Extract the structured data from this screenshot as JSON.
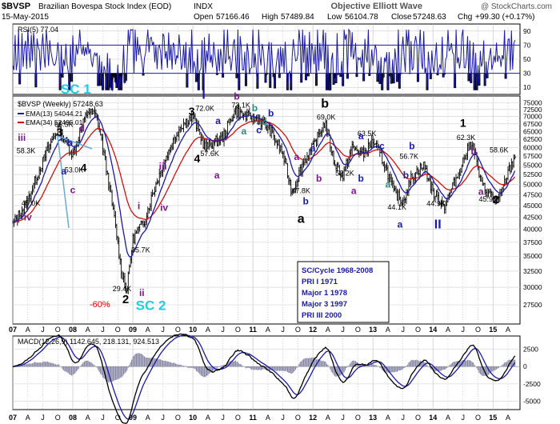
{
  "header": {
    "symbol": "$BVSP",
    "name": "Brazilian Bovespa Stock Index (EOD)",
    "exchange": "INDX",
    "date": "15-May-2015",
    "open_label": "Open",
    "open": "57166.46",
    "high_label": "High",
    "high": "57489.84",
    "low_label": "Low",
    "low": "56104.78",
    "close_label": "Close",
    "close": "57248.63",
    "chg_label": "Chg",
    "chg": "+99.30 (+0.17%)",
    "brand": "Objective Elliott Wave",
    "copyright": "@ StockCharts.com"
  },
  "chart_data": [
    {
      "type": "line",
      "panel": "rsi",
      "legend": "RSI(5) 77.04",
      "yticks": [
        10,
        30,
        50,
        70,
        90
      ],
      "ylim": [
        0,
        100
      ],
      "bands": [
        30,
        70
      ],
      "series": [
        {
          "name": "RSI(5)",
          "color": "#1a1aa6",
          "seed": 7
        }
      ]
    },
    {
      "type": "line",
      "panel": "price",
      "legend_title": "$BVSP (Weekly) 57248.63",
      "legend": [
        {
          "name": "EMA(13) 54044.21",
          "color": "#1a1aa6"
        },
        {
          "name": "EMA(34) 52495.01",
          "color": "#cc1111"
        }
      ],
      "x": [
        2007.0,
        2007.25,
        2007.5,
        2007.75,
        2008.0,
        2008.25,
        2008.4,
        2008.6,
        2008.8,
        2008.9,
        2009.0,
        2009.2,
        2009.5,
        2009.8,
        2010.0,
        2010.2,
        2010.5,
        2010.7,
        2010.9,
        2011.1,
        2011.3,
        2011.5,
        2011.65,
        2011.85,
        2012.0,
        2012.2,
        2012.35,
        2012.5,
        2012.65,
        2012.85,
        2013.0,
        2013.2,
        2013.35,
        2013.5,
        2013.65,
        2013.85,
        2014.0,
        2014.2,
        2014.4,
        2014.5,
        2014.65,
        2014.8,
        2014.95,
        2015.1,
        2015.25,
        2015.37
      ],
      "y": [
        41000,
        46000,
        56000,
        66000,
        58000,
        72000,
        70000,
        50000,
        33000,
        29400,
        38000,
        42000,
        55000,
        67000,
        70000,
        60000,
        63000,
        72000,
        70000,
        69000,
        65000,
        58000,
        48000,
        56000,
        60000,
        68000,
        56000,
        52000,
        60000,
        58000,
        62000,
        55000,
        48000,
        46000,
        52000,
        55000,
        48000,
        45000,
        52000,
        56000,
        62300,
        50000,
        47500,
        46000,
        53000,
        57248
      ],
      "ylim": [
        25000,
        77500
      ],
      "yticks": [
        27500,
        30000,
        32500,
        35000,
        37500,
        40000,
        42500,
        45000,
        47500,
        50000,
        52500,
        55000,
        57500,
        60000,
        62500,
        65000,
        67500,
        70000,
        72500,
        75000
      ],
      "ytick_labels": [
        "27500",
        "30000",
        "32500",
        "35000",
        "37500",
        "40000",
        "42500",
        "45000",
        "47500",
        "50000",
        "52500",
        "55000",
        "57500",
        "60000",
        "62500",
        "65000",
        "67500",
        "70000",
        "72500",
        "75000"
      ],
      "log_scale": true,
      "annotations": [
        {
          "t": 2007.3,
          "v": 45000,
          "text": "45.0K",
          "color": "#000000",
          "size": 9
        },
        {
          "t": 2007.22,
          "v": 58300,
          "text": "58.3K",
          "color": "#000000",
          "size": 9
        },
        {
          "t": 2007.85,
          "v": 66500,
          "text": "66.5K",
          "color": "#000000",
          "size": 9
        },
        {
          "t": 2008.02,
          "v": 53000,
          "text": "53.0K",
          "color": "#000000",
          "size": 9
        },
        {
          "t": 2009.13,
          "v": 35700,
          "text": "35.7K",
          "color": "#000000",
          "size": 9
        },
        {
          "t": 2008.82,
          "v": 29400,
          "text": "29.4K",
          "color": "#000000",
          "size": 9
        },
        {
          "t": 2010.2,
          "v": 72000,
          "text": "72.0K",
          "color": "#000000",
          "size": 9
        },
        {
          "t": 2010.28,
          "v": 57600,
          "text": "57.6K",
          "color": "#000000",
          "size": 9
        },
        {
          "t": 2010.8,
          "v": 73100,
          "text": "73.1K",
          "color": "#000000",
          "size": 9
        },
        {
          "t": 2011.8,
          "v": 47800,
          "text": "47.8K",
          "color": "#000000",
          "size": 9
        },
        {
          "t": 2012.22,
          "v": 69000,
          "text": "69.0K",
          "color": "#000000",
          "size": 9
        },
        {
          "t": 2012.53,
          "v": 52200,
          "text": "52.2K",
          "color": "#000000",
          "size": 9
        },
        {
          "t": 2012.9,
          "v": 63500,
          "text": "63.5K",
          "color": "#000000",
          "size": 9
        },
        {
          "t": 2013.4,
          "v": 44100,
          "text": "44.1K",
          "color": "#000000",
          "size": 9
        },
        {
          "t": 2013.6,
          "v": 56700,
          "text": "56.7K",
          "color": "#000000",
          "size": 9
        },
        {
          "t": 2014.05,
          "v": 44900,
          "text": "44.9K",
          "color": "#000000",
          "size": 9
        },
        {
          "t": 2014.55,
          "v": 62300,
          "text": "62.3K",
          "color": "#000000",
          "size": 9
        },
        {
          "t": 2014.92,
          "v": 45900,
          "text": "45.9K",
          "color": "#000000",
          "size": 9
        },
        {
          "t": 2015.1,
          "v": 58600,
          "text": "58.6K",
          "color": "#000000",
          "size": 9
        },
        {
          "t": 2008.05,
          "v": 78500,
          "text": "SC 1",
          "color": "#22ccdd",
          "size": 17
        },
        {
          "t": 2009.3,
          "v": 26800,
          "text": "SC 2",
          "color": "#22ccdd",
          "size": 17
        },
        {
          "t": 2008.45,
          "v": 27200,
          "text": "-60%",
          "color": "#dd0000",
          "size": 11
        },
        {
          "t": 2007.15,
          "v": 62000,
          "text": "iii",
          "color": "#7a1a8a",
          "size": 12
        },
        {
          "t": 2007.25,
          "v": 41800,
          "text": "iv",
          "color": "#7a1a8a",
          "size": 12
        },
        {
          "t": 2007.78,
          "v": 63500,
          "text": "3",
          "color": "#000000",
          "size": 14
        },
        {
          "t": 2007.85,
          "v": 52500,
          "text": "a",
          "color": "#1a1aa6",
          "size": 12
        },
        {
          "t": 2007.95,
          "v": 60500,
          "text": "b",
          "color": "#1a1aa6",
          "size": 12
        },
        {
          "t": 2008.0,
          "v": 47800,
          "text": "c",
          "color": "#7a1a8a",
          "size": 12
        },
        {
          "t": 2008.15,
          "v": 65000,
          "text": "d",
          "color": "#7a1a8a",
          "size": 12
        },
        {
          "t": 2008.18,
          "v": 53300,
          "text": "4",
          "color": "#000000",
          "size": 14
        },
        {
          "t": 2008.88,
          "v": 27700,
          "text": "2",
          "color": "#000000",
          "size": 15
        },
        {
          "t": 2009.15,
          "v": 28700,
          "text": "ii",
          "color": "#7a1a8a",
          "size": 12
        },
        {
          "t": 2009.1,
          "v": 44200,
          "text": "i",
          "color": "#7a1a8a",
          "size": 12
        },
        {
          "t": 2009.5,
          "v": 53800,
          "text": "iii",
          "color": "#7a1a8a",
          "size": 12
        },
        {
          "t": 2009.52,
          "v": 43800,
          "text": "iv",
          "color": "#7a1a8a",
          "size": 12
        },
        {
          "t": 2009.98,
          "v": 70500,
          "text": "3",
          "color": "#000000",
          "size": 14
        },
        {
          "t": 2010.18,
          "v": 76500,
          "text": "I",
          "color": "#1a1aa6",
          "size": 16
        },
        {
          "t": 2010.07,
          "v": 55800,
          "text": "4",
          "color": "#000000",
          "size": 14
        },
        {
          "t": 2010.4,
          "v": 51500,
          "text": "a",
          "color": "#7a1a8a",
          "size": 12
        },
        {
          "t": 2010.42,
          "v": 67500,
          "text": "a",
          "color": "#1a1aa6",
          "size": 12
        },
        {
          "t": 2010.73,
          "v": 76200,
          "text": "b",
          "color": "#7a1a8a",
          "size": 12
        },
        {
          "t": 2010.85,
          "v": 64000,
          "text": "a",
          "color": "#2a8a7a",
          "size": 12
        },
        {
          "t": 2011.03,
          "v": 71800,
          "text": "b",
          "color": "#2a8a7a",
          "size": 12
        },
        {
          "t": 2011.1,
          "v": 64500,
          "text": "c",
          "color": "#1a1aa6",
          "size": 12
        },
        {
          "t": 2011.3,
          "v": 70000,
          "text": "b",
          "color": "#1a1aa6",
          "size": 12
        },
        {
          "t": 2011.2,
          "v": 67000,
          "text": "c",
          "color": "#2a8a7a",
          "size": 12
        },
        {
          "t": 2011.73,
          "v": 56400,
          "text": "a",
          "color": "#7a1a8a",
          "size": 12
        },
        {
          "t": 2012.0,
          "v": 58800,
          "text": "a",
          "color": "#1a1aa6",
          "size": 12
        },
        {
          "t": 2011.88,
          "v": 45300,
          "text": "b",
          "color": "#1a1aa6",
          "size": 12
        },
        {
          "t": 2011.8,
          "v": 41300,
          "text": "a",
          "color": "#000000",
          "size": 16
        },
        {
          "t": 2012.1,
          "v": 50700,
          "text": "b",
          "color": "#7a1a8a",
          "size": 12
        },
        {
          "t": 2012.2,
          "v": 73200,
          "text": "b",
          "color": "#000000",
          "size": 16
        },
        {
          "t": 2012.68,
          "v": 47700,
          "text": "a",
          "color": "#7a1a8a",
          "size": 12
        },
        {
          "t": 2012.8,
          "v": 62500,
          "text": "a",
          "color": "#1a1aa6",
          "size": 12
        },
        {
          "t": 2012.8,
          "v": 50700,
          "text": "b",
          "color": "#1a1aa6",
          "size": 12
        },
        {
          "t": 2013.15,
          "v": 59500,
          "text": "c",
          "color": "#1a1aa6",
          "size": 12
        },
        {
          "t": 2013.25,
          "v": 49200,
          "text": "a",
          "color": "#2a8a7a",
          "size": 12
        },
        {
          "t": 2013.45,
          "v": 40300,
          "text": "a",
          "color": "#1a1aa6",
          "size": 12
        },
        {
          "t": 2013.55,
          "v": 51500,
          "text": "b",
          "color": "#1a1aa6",
          "size": 12
        },
        {
          "t": 2013.65,
          "v": 59500,
          "text": "b",
          "color": "#1a1aa6",
          "size": 12
        },
        {
          "t": 2014.08,
          "v": 40200,
          "text": "II",
          "color": "#1a1aa6",
          "size": 16
        },
        {
          "t": 2014.5,
          "v": 66500,
          "text": "1",
          "color": "#000000",
          "size": 14
        },
        {
          "t": 2014.68,
          "v": 58000,
          "text": "b",
          "color": "#7a1a8a",
          "size": 12
        },
        {
          "t": 2014.8,
          "v": 47500,
          "text": "a",
          "color": "#7a1a8a",
          "size": 12
        },
        {
          "t": 2015.05,
          "v": 45500,
          "text": "2",
          "color": "#000000",
          "size": 14
        }
      ],
      "series": [
        {
          "name": "$BVSP (Weekly)",
          "type": "bars",
          "color": "#000000"
        },
        {
          "name": "EMA(13)",
          "type": "ema",
          "color": "#1a1aa6",
          "lag": 0.09
        },
        {
          "name": "EMA(34)",
          "type": "ema",
          "color": "#cc1111",
          "lag": 0.24
        }
      ]
    },
    {
      "type": "line",
      "panel": "macd",
      "legend": "MACD(12,26,9) 1142.645, 218.131, 924.513",
      "yticks": [
        -5000,
        -2500,
        0,
        2500
      ],
      "ytick_labels": [
        "-5000",
        "-2500",
        "0",
        "2500"
      ],
      "ylim": [
        -6200,
        4400
      ],
      "series": [
        {
          "name": "MACD",
          "color": "#000000"
        },
        {
          "name": "Signal",
          "color": "#1a1aa6"
        },
        {
          "name": "Histogram",
          "color": "#8a8aa8"
        }
      ]
    }
  ],
  "xaxis": {
    "labels": [
      "07",
      "A",
      "J",
      "O",
      "08",
      "A",
      "J",
      "O",
      "09",
      "A",
      "J",
      "O",
      "10",
      "A",
      "J",
      "O",
      "11",
      "A",
      "J",
      "O",
      "12",
      "A",
      "J",
      "O",
      "13",
      "A",
      "J",
      "O",
      "14",
      "A",
      "J",
      "O",
      "15",
      "A"
    ],
    "xlim": [
      2007.0,
      2015.45
    ]
  },
  "info_box": {
    "lines": [
      "SC/Cycle 1968-2008",
      "PRI I 1971",
      "Major 1 1978",
      "Major 3 1997",
      "PRI III 2000"
    ]
  },
  "colors": {
    "accent": "#1a1aa6",
    "ema34": "#cc1111",
    "sc": "#22ccdd",
    "wave_purple": "#7a1a8a",
    "wave_teal": "#2a8a7a"
  }
}
